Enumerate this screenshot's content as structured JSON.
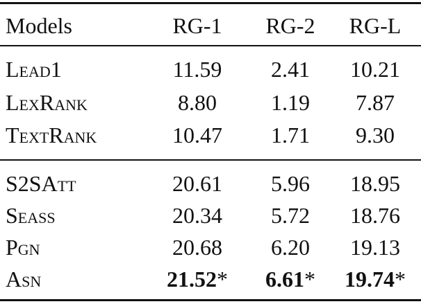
{
  "table": {
    "header": [
      "Models",
      "RG-1",
      "RG-2",
      "RG-L"
    ],
    "groups": [
      [
        {
          "model": "Lead1",
          "scores": [
            "11.59",
            "2.41",
            "10.21"
          ]
        },
        {
          "model": "LexRank",
          "scores": [
            "8.80",
            "1.19",
            "7.87"
          ]
        },
        {
          "model": "TextRank",
          "scores": [
            "10.47",
            "1.71",
            "9.30"
          ]
        }
      ],
      [
        {
          "model": "S2SAtt",
          "scores": [
            "20.61",
            "5.96",
            "18.95"
          ]
        },
        {
          "model": "Seass",
          "scores": [
            "20.34",
            "5.72",
            "18.76"
          ]
        },
        {
          "model": "Pgn",
          "scores": [
            "20.68",
            "6.20",
            "19.13"
          ]
        },
        {
          "model": "Asn",
          "scores": [
            "21.52",
            "6.61",
            "19.74"
          ],
          "bold": true,
          "notes": [
            "*",
            "*",
            "*"
          ]
        }
      ]
    ]
  }
}
